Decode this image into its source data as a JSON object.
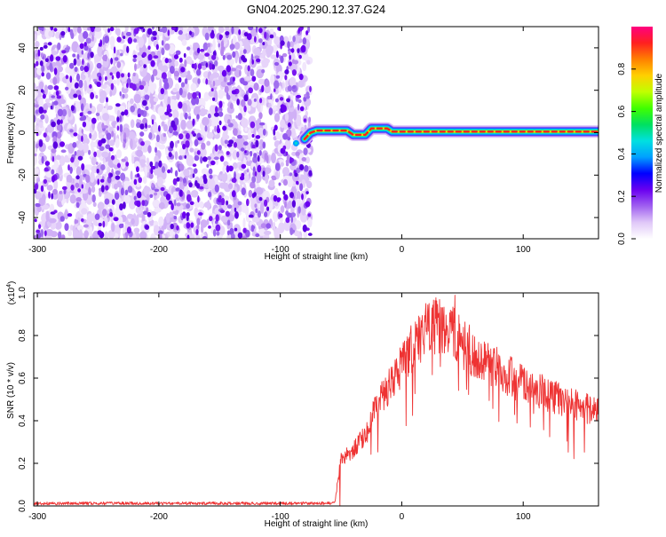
{
  "title": "GN04.2025.290.12.37.G24",
  "chart_data": [
    {
      "type": "heatmap",
      "xlabel": "Height of straight line (km)",
      "ylabel": "Frequency (Hz)",
      "xlim": [
        -303,
        162
      ],
      "ylim": [
        -50,
        50
      ],
      "x_ticks": [
        -300,
        -200,
        -100,
        0,
        100
      ],
      "x_tick_labels": [
        "-300",
        "-200",
        "-100",
        "0",
        "100"
      ],
      "y_ticks": [
        -40,
        -20,
        0,
        20,
        40
      ],
      "y_tick_labels": [
        "-40",
        "-20",
        "0",
        "20",
        "40"
      ],
      "colorbar": {
        "label": "Normalized spectral amplitude",
        "range": [
          0,
          1
        ],
        "ticks": [
          0,
          0.2,
          0.4,
          0.6,
          0.8
        ],
        "tick_labels": [
          "0.0",
          "0.2",
          "0.4",
          "0.6",
          "0.8"
        ],
        "colors": [
          "#ffffff",
          "#e0c8f8",
          "#a060f0",
          "#6a00f0",
          "#0000ff",
          "#00a0ff",
          "#00e0e0",
          "#00e060",
          "#40ff00",
          "#c0ff00",
          "#ffd000",
          "#ff8000",
          "#ff2020",
          "#ff0080"
        ]
      },
      "noise_region": {
        "x_range": [
          -303,
          -75
        ],
        "y_range": [
          -50,
          50
        ]
      },
      "signal_path": [
        {
          "x": -80,
          "y": -3
        },
        {
          "x": -75,
          "y": 0
        },
        {
          "x": -70,
          "y": 1
        },
        {
          "x": -45,
          "y": 1
        },
        {
          "x": -40,
          "y": -1
        },
        {
          "x": -30,
          "y": -1
        },
        {
          "x": -25,
          "y": 2
        },
        {
          "x": -12,
          "y": 2
        },
        {
          "x": -8,
          "y": 0.5
        },
        {
          "x": 162,
          "y": 0.5
        }
      ]
    },
    {
      "type": "line",
      "xlabel": "Height of straight line (km)",
      "ylabel": "SNR (10 * v/v)",
      "y_multiplier_label": "(x10",
      "y_multiplier_exp": "4",
      "y_multiplier_close": ")",
      "xlim": [
        -303,
        162
      ],
      "ylim": [
        0,
        1.0
      ],
      "x_ticks": [
        -300,
        -200,
        -100,
        0,
        100
      ],
      "x_tick_labels": [
        "-300",
        "-200",
        "-100",
        "0",
        "100"
      ],
      "y_ticks": [
        0,
        0.2,
        0.4,
        0.6,
        0.8,
        1.0
      ],
      "y_tick_labels": [
        "0.0",
        "0.2",
        "0.4",
        "0.6",
        "0.8",
        "1.0"
      ],
      "series": [
        {
          "color": "#ee3333",
          "envelope": [
            {
              "x": -303,
              "y": 0.01
            },
            {
              "x": -60,
              "y": 0.01
            },
            {
              "x": -55,
              "y": 0.02
            },
            {
              "x": -50,
              "y": 0.22
            },
            {
              "x": -40,
              "y": 0.26
            },
            {
              "x": -30,
              "y": 0.33
            },
            {
              "x": -20,
              "y": 0.48
            },
            {
              "x": -10,
              "y": 0.56
            },
            {
              "x": 0,
              "y": 0.66
            },
            {
              "x": 10,
              "y": 0.76
            },
            {
              "x": 20,
              "y": 0.82
            },
            {
              "x": 30,
              "y": 0.85
            },
            {
              "x": 40,
              "y": 0.82
            },
            {
              "x": 50,
              "y": 0.76
            },
            {
              "x": 70,
              "y": 0.67
            },
            {
              "x": 100,
              "y": 0.57
            },
            {
              "x": 130,
              "y": 0.5
            },
            {
              "x": 162,
              "y": 0.44
            }
          ]
        }
      ]
    }
  ]
}
